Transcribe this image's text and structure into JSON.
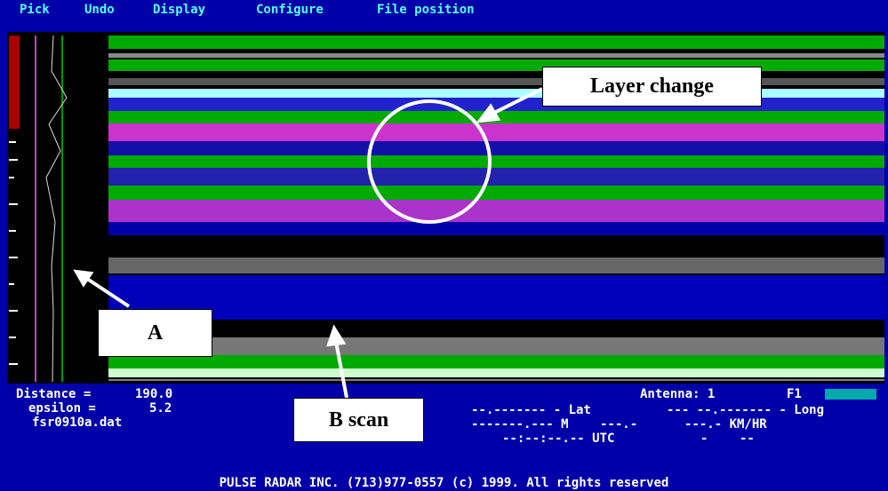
{
  "menu": [
    "Pick",
    "Undo",
    "Display",
    "Configure",
    "File position"
  ],
  "annotations": {
    "a": "A",
    "layer_change": "Layer change",
    "b_scan": "B scan"
  },
  "status": {
    "distance_label": "Distance =",
    "distance": "190.0",
    "epsilon_label": "epsilon =",
    "epsilon": "5.2",
    "file": "fsr0910a.dat",
    "antenna": "Antenna: 1",
    "key": "F1",
    "lat": "--.------- - Lat",
    "long": "--- --.------- - Long",
    "m": "-------.--- M",
    "speed1": "---.-",
    "speed2": "---.- KM/HR",
    "utc": "--:--:--.-- UTC",
    "dash1": "-",
    "dash2": "--"
  },
  "footer": "PULSE RADAR INC. (713)977-0557 (c) 1999. All rights reserved"
}
